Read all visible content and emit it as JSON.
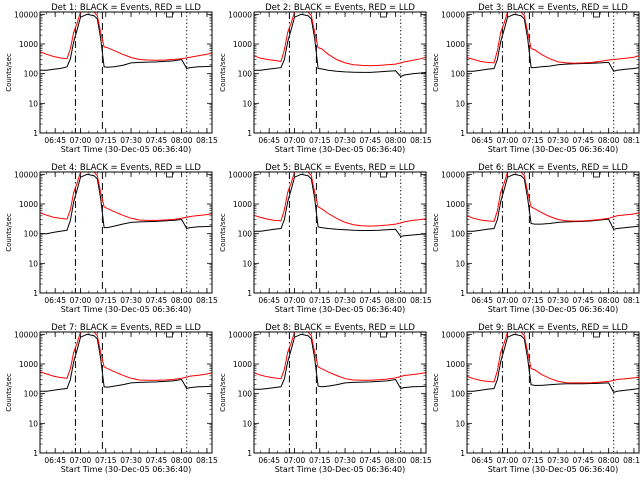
{
  "chart_data": {
    "type": "line",
    "layout": "3x3 grid of detector panels",
    "yscale": "log",
    "ylim": [
      1,
      12000
    ],
    "yticks": [
      1,
      10,
      100,
      1000,
      10000
    ],
    "ytick_labels": [
      "1",
      "10",
      "100",
      "1000",
      "10000"
    ],
    "xlim": [
      "06:36",
      "08:18"
    ],
    "xticks": [
      "06:45",
      "07:00",
      "07:15",
      "07:30",
      "07:45",
      "08:00",
      "08:15"
    ],
    "xlabel": "Start Time (30-Dec-05 06:36:40)",
    "ylabel": "Counts/sec",
    "colors": {
      "events": "#000000",
      "lld": "#ff0000"
    },
    "marker_lines": [
      {
        "time": "06:57",
        "style": "dash-dot"
      },
      {
        "time": "07:13",
        "style": "dashed"
      },
      {
        "time": "08:03",
        "style": "dotted"
      }
    ],
    "flare_box_label": "",
    "x_times": [
      "06:36",
      "06:40",
      "06:44",
      "06:48",
      "06:52",
      "06:54",
      "06:56",
      "06:58",
      "07:00",
      "07:04",
      "07:08",
      "07:10",
      "07:12",
      "07:14",
      "07:16",
      "07:20",
      "07:25",
      "07:30",
      "07:35",
      "07:40",
      "07:45",
      "07:50",
      "07:55",
      "08:00",
      "08:03",
      "08:05",
      "08:10",
      "08:15",
      "08:18"
    ],
    "panels": [
      {
        "title": "Det 1: BLACK = Events, RED = LLD",
        "series": [
          {
            "name": "Events",
            "values": [
              130,
              130,
              140,
              150,
              170,
              320,
              1200,
              3000,
              8000,
              10000,
              9000,
              7000,
              1500,
              170,
              165,
              170,
              190,
              230,
              240,
              245,
              250,
              260,
              270,
              300,
              150,
              160,
              170,
              175,
              180
            ]
          },
          {
            "name": "LLD",
            "values": [
              550,
              450,
              380,
              340,
              320,
              700,
              2500,
              5000,
              12000,
              12000,
              12000,
              9000,
              2500,
              800,
              750,
              600,
              450,
              350,
              300,
              290,
              285,
              290,
              300,
              320,
              340,
              360,
              400,
              450,
              500
            ]
          }
        ]
      },
      {
        "title": "Det 2: BLACK = Events, RED = LLD",
        "series": [
          {
            "name": "Events",
            "values": [
              130,
              130,
              140,
              150,
              160,
              300,
              1200,
              3000,
              8000,
              10000,
              9000,
              7000,
              1500,
              150,
              145,
              130,
              120,
              115,
              112,
              110,
              110,
              115,
              120,
              125,
              80,
              90,
              100,
              105,
              110
            ]
          },
          {
            "name": "LLD",
            "values": [
              400,
              330,
              300,
              280,
              260,
              650,
              2500,
              5000,
              12000,
              12000,
              12000,
              9000,
              2500,
              750,
              700,
              450,
              300,
              230,
              200,
              190,
              185,
              190,
              200,
              210,
              230,
              250,
              280,
              320,
              360
            ]
          }
        ]
      },
      {
        "title": "Det 3: BLACK = Events, RED = LLD",
        "series": [
          {
            "name": "Events",
            "values": [
              120,
              120,
              130,
              140,
              150,
              300,
              1200,
              3000,
              8000,
              10000,
              9000,
              7000,
              1500,
              160,
              160,
              170,
              180,
              200,
              210,
              215,
              220,
              225,
              230,
              240,
              120,
              130,
              140,
              150,
              160
            ]
          },
          {
            "name": "LLD",
            "values": [
              350,
              300,
              260,
              240,
              230,
              600,
              2500,
              5000,
              12000,
              12000,
              12000,
              9000,
              2500,
              700,
              650,
              450,
              320,
              250,
              230,
              225,
              230,
              240,
              260,
              290,
              300,
              310,
              330,
              360,
              400
            ]
          }
        ]
      },
      {
        "title": "Det 4: BLACK = Events, RED = LLD",
        "series": [
          {
            "name": "Events",
            "values": [
              100,
              100,
              110,
              120,
              130,
              280,
              1200,
              3000,
              8000,
              10000,
              9000,
              7000,
              1500,
              160,
              160,
              180,
              210,
              240,
              250,
              255,
              260,
              270,
              280,
              300,
              150,
              160,
              170,
              175,
              180
            ]
          },
          {
            "name": "LLD",
            "values": [
              500,
              420,
              360,
              330,
              310,
              650,
              2500,
              5000,
              12000,
              12000,
              12000,
              9000,
              2500,
              800,
              700,
              550,
              420,
              330,
              290,
              280,
              280,
              290,
              300,
              330,
              360,
              380,
              410,
              440,
              470
            ]
          }
        ]
      },
      {
        "title": "Det 5: BLACK = Events, RED = LLD",
        "series": [
          {
            "name": "Events",
            "values": [
              120,
              120,
              130,
              140,
              150,
              300,
              1200,
              3000,
              8000,
              10000,
              9000,
              7000,
              1500,
              170,
              160,
              150,
              140,
              135,
              130,
              128,
              128,
              130,
              135,
              140,
              80,
              85,
              90,
              95,
              100
            ]
          },
          {
            "name": "LLD",
            "values": [
              420,
              350,
              310,
              280,
              270,
              650,
              2500,
              5000,
              12000,
              12000,
              12000,
              9000,
              2500,
              800,
              700,
              480,
              330,
              240,
              200,
              185,
              180,
              185,
              195,
              210,
              230,
              250,
              280,
              300,
              320
            ]
          }
        ]
      },
      {
        "title": "Det 6: BLACK = Events, RED = LLD",
        "series": [
          {
            "name": "Events",
            "values": [
              120,
              120,
              130,
              140,
              150,
              300,
              1200,
              3000,
              8000,
              10000,
              9000,
              7000,
              1500,
              220,
              210,
              210,
              220,
              240,
              250,
              255,
              260,
              270,
              290,
              310,
              140,
              150,
              160,
              170,
              180
            ]
          },
          {
            "name": "LLD",
            "values": [
              400,
              330,
              290,
              270,
              260,
              600,
              2500,
              5000,
              12000,
              12000,
              12000,
              9000,
              2500,
              800,
              700,
              520,
              380,
              300,
              270,
              265,
              270,
              285,
              300,
              330,
              370,
              400,
              430,
              460,
              500
            ]
          }
        ]
      },
      {
        "title": "Det 7: BLACK = Events, RED = LLD",
        "series": [
          {
            "name": "Events",
            "values": [
              120,
              120,
              130,
              140,
              150,
              300,
              1200,
              3000,
              8000,
              10000,
              9000,
              7000,
              1500,
              170,
              165,
              180,
              200,
              230,
              240,
              245,
              250,
              260,
              270,
              300,
              150,
              160,
              170,
              175,
              180
            ]
          },
          {
            "name": "LLD",
            "values": [
              550,
              460,
              390,
              350,
              330,
              700,
              2500,
              5000,
              12000,
              12000,
              12000,
              9000,
              2500,
              800,
              700,
              550,
              420,
              330,
              290,
              285,
              285,
              290,
              300,
              330,
              360,
              390,
              420,
              460,
              500
            ]
          }
        ]
      },
      {
        "title": "Det 8: BLACK = Events, RED = LLD",
        "series": [
          {
            "name": "Events",
            "values": [
              140,
              140,
              150,
              160,
              170,
              320,
              1200,
              3000,
              8000,
              10000,
              9000,
              7000,
              1500,
              180,
              170,
              180,
              200,
              230,
              240,
              245,
              250,
              260,
              270,
              300,
              150,
              160,
              170,
              175,
              180
            ]
          },
          {
            "name": "LLD",
            "values": [
              500,
              420,
              370,
              340,
              320,
              680,
              2500,
              5000,
              12000,
              12000,
              12000,
              9000,
              2500,
              800,
              700,
              540,
              410,
              320,
              290,
              285,
              285,
              295,
              310,
              340,
              380,
              410,
              440,
              480,
              520
            ]
          }
        ]
      },
      {
        "title": "Det 9: BLACK = Events, RED = LLD",
        "series": [
          {
            "name": "Events",
            "values": [
              120,
              120,
              130,
              140,
              150,
              300,
              1200,
              3000,
              8000,
              10000,
              9000,
              7000,
              1500,
              200,
              190,
              190,
              200,
              210,
              215,
              215,
              215,
              220,
              225,
              230,
              110,
              120,
              130,
              140,
              150
            ]
          },
          {
            "name": "LLD",
            "values": [
              380,
              320,
              280,
              260,
              250,
              600,
              2500,
              5000,
              12000,
              12000,
              12000,
              9000,
              2500,
              700,
              650,
              450,
              330,
              260,
              235,
              230,
              230,
              235,
              245,
              260,
              280,
              300,
              320,
              340,
              360
            ]
          }
        ]
      }
    ]
  }
}
